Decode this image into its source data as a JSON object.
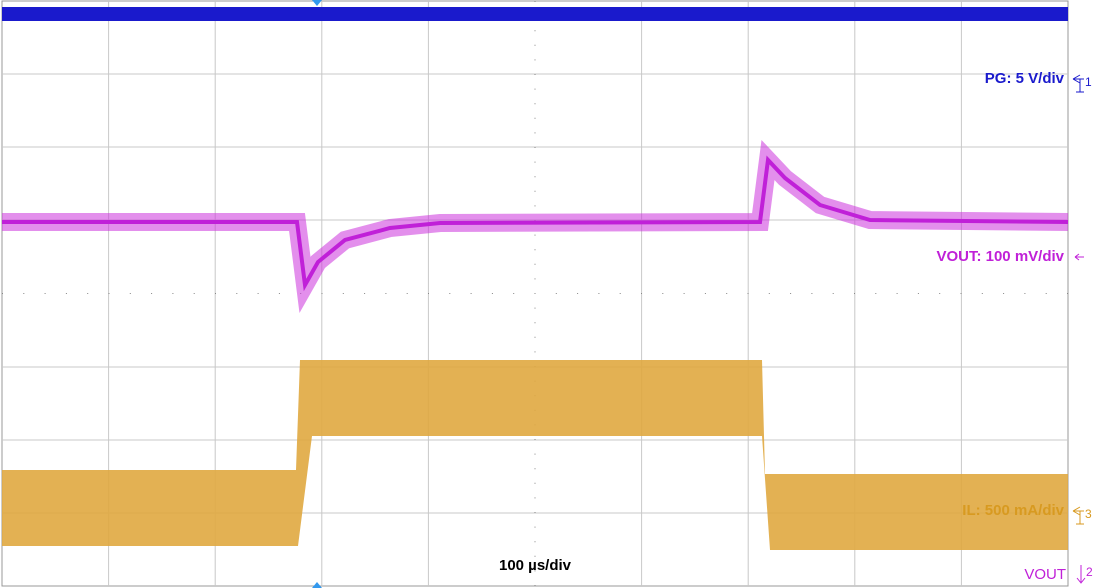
{
  "channels": [
    {
      "label": "PG: 5 V/div",
      "marker": "1"
    },
    {
      "label": "VOUT: 100 mV/div"
    },
    {
      "label": "IL: 500 mA/div",
      "marker": "3"
    }
  ],
  "timebase": "100 µs/div",
  "reference": {
    "label": "VOUT",
    "marker": "2"
  }
}
